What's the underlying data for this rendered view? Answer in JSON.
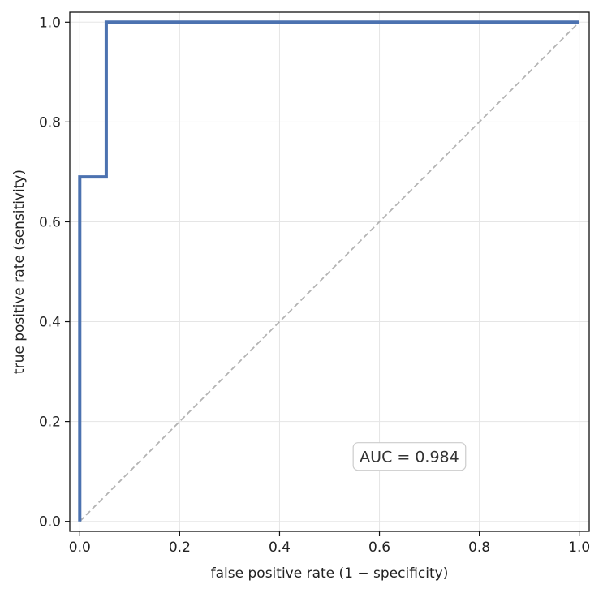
{
  "chart_data": {
    "type": "line",
    "title": "",
    "xlabel": "false positive rate (1 − specificity)",
    "ylabel": "true positive rate (sensitivity)",
    "xlim": [
      -0.02,
      1.02
    ],
    "ylim": [
      -0.02,
      1.02
    ],
    "xticks": [
      0.0,
      0.2,
      0.4,
      0.6,
      0.8,
      1.0
    ],
    "yticks": [
      0.0,
      0.2,
      0.4,
      0.6,
      0.8,
      1.0
    ],
    "xtick_labels": [
      "0.0",
      "0.2",
      "0.4",
      "0.6",
      "0.8",
      "1.0"
    ],
    "ytick_labels": [
      "0.0",
      "0.2",
      "0.4",
      "0.6",
      "0.8",
      "1.0"
    ],
    "grid": true,
    "series": [
      {
        "role": "roc-curve",
        "color": "#4c72b0",
        "style": "solid",
        "x": [
          0.0,
          0.0,
          0.053,
          0.053,
          1.0
        ],
        "y": [
          0.0,
          0.69,
          0.69,
          1.0,
          1.0
        ]
      },
      {
        "role": "chance-line",
        "color": "#b3b3b3",
        "style": "dashed",
        "x": [
          0.0,
          1.0
        ],
        "y": [
          0.0,
          1.0
        ]
      }
    ],
    "annotation": {
      "text": "AUC = 0.984",
      "x": 0.66,
      "y": 0.13
    }
  }
}
